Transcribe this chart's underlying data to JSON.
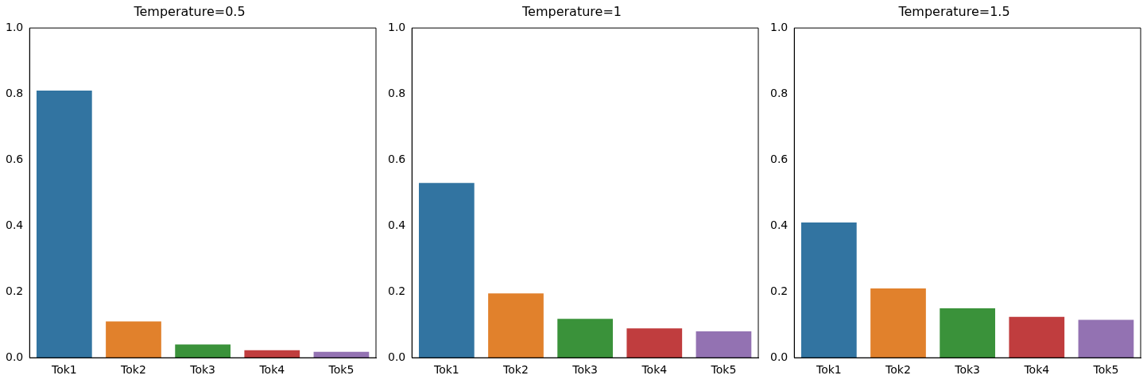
{
  "chart_data": [
    {
      "type": "bar",
      "title": "Temperature=0.5",
      "categories": [
        "Tok1",
        "Tok2",
        "Tok3",
        "Tok4",
        "Tok5"
      ],
      "values": [
        0.81,
        0.11,
        0.04,
        0.023,
        0.018
      ],
      "colors": [
        "#3274a1",
        "#e1812c",
        "#3a923a",
        "#c03d3e",
        "#9372b2"
      ],
      "ylim": [
        0,
        1
      ],
      "yticks": [
        {
          "value": 0,
          "label": "0.0"
        },
        {
          "value": 0.2,
          "label": "0.2"
        },
        {
          "value": 0.4,
          "label": "0.4"
        },
        {
          "value": 0.6,
          "label": "0.6"
        },
        {
          "value": 0.8,
          "label": "0.8"
        },
        {
          "value": 1,
          "label": "1.0"
        }
      ]
    },
    {
      "type": "bar",
      "title": "Temperature=1",
      "categories": [
        "Tok1",
        "Tok2",
        "Tok3",
        "Tok4",
        "Tok5"
      ],
      "values": [
        0.53,
        0.195,
        0.118,
        0.089,
        0.08
      ],
      "colors": [
        "#3274a1",
        "#e1812c",
        "#3a923a",
        "#c03d3e",
        "#9372b2"
      ],
      "ylim": [
        0,
        1
      ],
      "yticks": [
        {
          "value": 0,
          "label": "0.0"
        },
        {
          "value": 0.2,
          "label": "0.2"
        },
        {
          "value": 0.4,
          "label": "0.4"
        },
        {
          "value": 0.6,
          "label": "0.6"
        },
        {
          "value": 0.8,
          "label": "0.8"
        },
        {
          "value": 1,
          "label": "1.0"
        }
      ]
    },
    {
      "type": "bar",
      "title": "Temperature=1.5",
      "categories": [
        "Tok1",
        "Tok2",
        "Tok3",
        "Tok4",
        "Tok5"
      ],
      "values": [
        0.41,
        0.21,
        0.15,
        0.124,
        0.115
      ],
      "colors": [
        "#3274a1",
        "#e1812c",
        "#3a923a",
        "#c03d3e",
        "#9372b2"
      ],
      "ylim": [
        0,
        1
      ],
      "yticks": [
        {
          "value": 0,
          "label": "0.0"
        },
        {
          "value": 0.2,
          "label": "0.2"
        },
        {
          "value": 0.4,
          "label": "0.4"
        },
        {
          "value": 0.6,
          "label": "0.6"
        },
        {
          "value": 0.8,
          "label": "0.8"
        },
        {
          "value": 1,
          "label": "1.0"
        }
      ]
    }
  ]
}
